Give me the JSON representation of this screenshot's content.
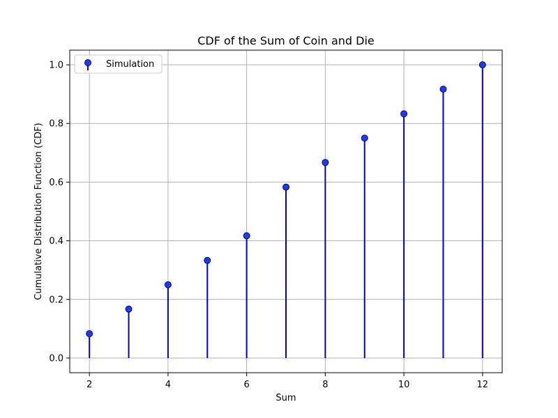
{
  "chart_data": {
    "type": "stem",
    "title": "CDF of the Sum of Coin and Die",
    "xlabel": "Sum",
    "ylabel": "Cumulative Distribution Function (CDF)",
    "xlim": [
      1.5,
      12.5
    ],
    "ylim": [
      -0.05,
      1.05
    ],
    "xticks": [
      2,
      4,
      6,
      8,
      10,
      12
    ],
    "xtick_labels": [
      "2",
      "4",
      "6",
      "8",
      "10",
      "12"
    ],
    "yticks": [
      0.0,
      0.2,
      0.4,
      0.6,
      0.8,
      1.0
    ],
    "ytick_labels": [
      "0.0",
      "0.2",
      "0.4",
      "0.6",
      "0.8",
      "1.0"
    ],
    "grid": true,
    "legend_position": "top-left",
    "series": [
      {
        "name": "Simulation",
        "color": "#0000cc",
        "marker_color": "#1f3fd6",
        "x": [
          2,
          3,
          4,
          5,
          6,
          7,
          8,
          9,
          10,
          11,
          12
        ],
        "y": [
          0.083,
          0.167,
          0.25,
          0.333,
          0.417,
          0.583,
          0.667,
          0.75,
          0.833,
          0.917,
          1.0
        ]
      }
    ]
  }
}
